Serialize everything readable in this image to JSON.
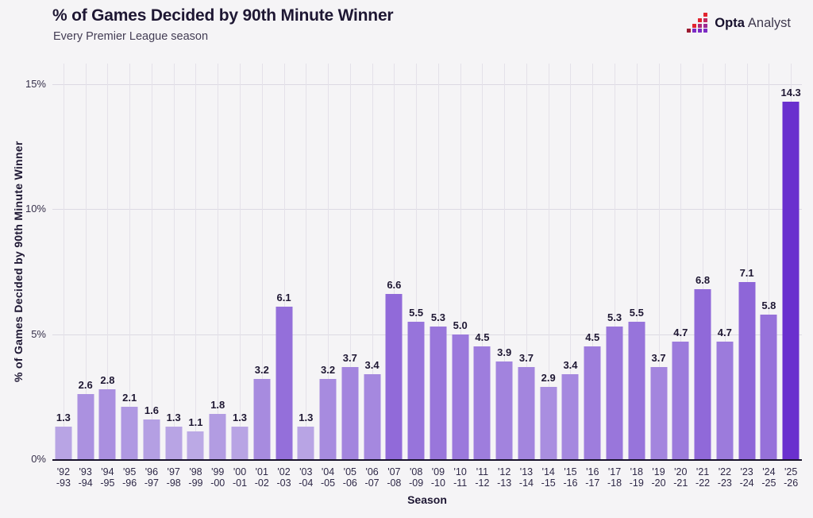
{
  "header": {
    "logo": {
      "brand_bold": "Opta",
      "brand_regular": "Analyst",
      "icon": "opta-pixel-chart-icon",
      "icon_colors": {
        "gradient_top": "#e2242e",
        "gradient_bottom": "#7c2cc4",
        "base_square": "#9c1c31"
      }
    }
  },
  "colors": {
    "background": "#f5f4f6",
    "title_text": "#1e1733",
    "subtitle_text": "#433d54",
    "axis_text": "#36304a",
    "tick_text": "#2e2847",
    "grid_vertical": "#e4e1e9",
    "grid_horizontal": "#dcd9e3",
    "axis_line": "#18122b",
    "bar_min_color": "#bba9e5",
    "bar_max_color": "#6a30ce"
  },
  "chart_data": {
    "type": "bar",
    "title": "% of Games Decided by 90th Minute Winner",
    "subtitle": "Every Premier League season",
    "xlabel": "Season",
    "ylabel": "% of Games Decided by 90th Minute Winner",
    "ylim": [
      0,
      15
    ],
    "yticks": [
      {
        "value": 0,
        "label": "0%"
      },
      {
        "value": 5,
        "label": "5%"
      },
      {
        "value": 10,
        "label": "10%"
      },
      {
        "value": 15,
        "label": "15%"
      }
    ],
    "legend": "none",
    "grid": {
      "horizontal": true,
      "vertical": true
    },
    "value_labels": "one decimal shown above each bar",
    "color_scale": {
      "min_value": 1.1,
      "max_value": 14.3,
      "min_color": "#bba9e5",
      "max_color": "#6a30ce",
      "gamma": 0.75
    },
    "categories": [
      "'92\n-93",
      "'93\n-94",
      "'94\n-95",
      "'95\n-96",
      "'96\n-97",
      "'97\n-98",
      "'98\n-99",
      "'99\n-00",
      "'00\n-01",
      "'01\n-02",
      "'02\n-03",
      "'03\n-04",
      "'04\n-05",
      "'05\n-06",
      "'06\n-07",
      "'07\n-08",
      "'08\n-09",
      "'09\n-10",
      "'10\n-11",
      "'11\n-12",
      "'12\n-13",
      "'13\n-14",
      "'14\n-15",
      "'15\n-16",
      "'16\n-17",
      "'17\n-18",
      "'18\n-19",
      "'19\n-20",
      "'20\n-21",
      "'21\n-22",
      "'22\n-23",
      "'23\n-24",
      "'24\n-25",
      "'25\n-26"
    ],
    "values": [
      1.3,
      2.6,
      2.8,
      2.1,
      1.6,
      1.3,
      1.1,
      1.8,
      1.3,
      3.2,
      6.1,
      1.3,
      3.2,
      3.7,
      3.4,
      6.6,
      5.5,
      5.3,
      5.0,
      4.5,
      3.9,
      3.7,
      2.9,
      3.4,
      4.5,
      5.3,
      5.5,
      3.7,
      4.7,
      6.8,
      4.7,
      7.1,
      5.8,
      14.3
    ]
  }
}
